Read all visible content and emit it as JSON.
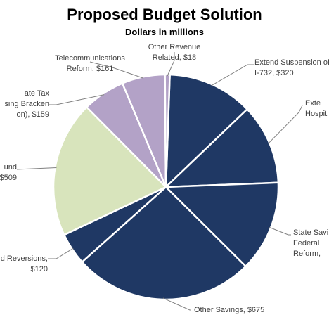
{
  "chart_data": {
    "type": "pie",
    "title": "Proposed Budget Solution",
    "subtitle": "Dollars in millions",
    "slices": [
      {
        "lines": [
          "Extend Suspension of",
          "I-732, $320"
        ],
        "value": 320,
        "color": "#1f3864"
      },
      {
        "lines": [
          "Exte",
          "Hospit"
        ],
        "value": 300,
        "color": "#1f3864"
      },
      {
        "lines": [
          "State Savi",
          "Federal",
          "Reform,"
        ],
        "value": 340,
        "color": "#1f3864"
      },
      {
        "lines": [
          "Other Savings, $675"
        ],
        "value": 675,
        "color": "#1f3864"
      },
      {
        "lines": [
          "d Reversions,",
          "$120"
        ],
        "value": 120,
        "color": "#1f3864"
      },
      {
        "lines": [
          "und",
          "$509"
        ],
        "value": 509,
        "color": "#d8e4bc"
      },
      {
        "lines": [
          "ate Tax",
          "sing Bracken",
          "on), $159"
        ],
        "value": 159,
        "color": "#b3a2c7"
      },
      {
        "lines": [
          "Telecommunications",
          "Reform,  $161"
        ],
        "value": 161,
        "color": "#b3a2c7"
      },
      {
        "lines": [
          "Other Revenue",
          "Related,  $18"
        ],
        "value": 18,
        "color": "#b3a2c7"
      }
    ]
  }
}
